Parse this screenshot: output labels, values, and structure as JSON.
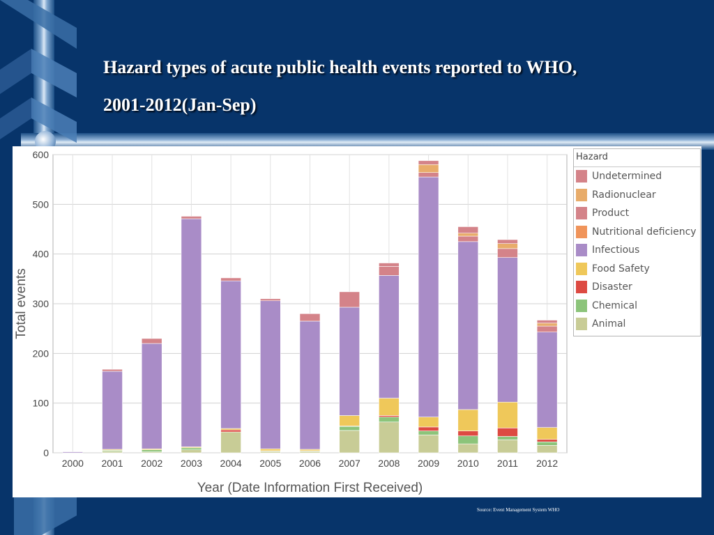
{
  "page": {
    "title_line1": "Hazard types of acute public health events reported to WHO,",
    "title_line2": "2001-2012(Jan-Sep)",
    "source": "Source: Event Management System WHO"
  },
  "chart_data": {
    "type": "bar",
    "stacked": true,
    "title": "",
    "xlabel": "Year (Date Information First Received)",
    "ylabel": "Total events",
    "ylim": [
      0,
      600
    ],
    "yticks": [
      0,
      100,
      200,
      300,
      400,
      500,
      600
    ],
    "grid": true,
    "legend_position": "right",
    "legend_title": "Hazard",
    "categories": [
      "2000",
      "2001",
      "2002",
      "2003",
      "2004",
      "2005",
      "2006",
      "2007",
      "2008",
      "2009",
      "2010",
      "2011",
      "2012"
    ],
    "series": [
      {
        "name": "Animal",
        "color": "#c8cc96",
        "values": [
          0,
          3,
          2,
          6,
          42,
          3,
          3,
          45,
          62,
          36,
          18,
          26,
          15
        ]
      },
      {
        "name": "Chemical",
        "color": "#8cc47a",
        "values": [
          0,
          2,
          4,
          4,
          0,
          1,
          1,
          8,
          10,
          8,
          16,
          7,
          7
        ]
      },
      {
        "name": "Disaster",
        "color": "#dd4a42",
        "values": [
          0,
          0,
          0,
          0,
          4,
          0,
          0,
          1,
          3,
          8,
          10,
          17,
          5
        ]
      },
      {
        "name": "Food Safety",
        "color": "#efc85a",
        "values": [
          0,
          2,
          2,
          2,
          3,
          4,
          3,
          21,
          35,
          20,
          43,
          52,
          24
        ]
      },
      {
        "name": "Infectious",
        "color": "#a98cc7",
        "values": [
          2,
          157,
          212,
          459,
          297,
          298,
          258,
          218,
          247,
          483,
          338,
          291,
          192
        ]
      },
      {
        "name": "Nutritional deficiency",
        "color": "#f0945a",
        "values": [
          0,
          0,
          0,
          0,
          0,
          0,
          0,
          0,
          0,
          0,
          0,
          0,
          0
        ]
      },
      {
        "name": "Product",
        "color": "#d48389",
        "values": [
          0,
          4,
          10,
          5,
          6,
          4,
          15,
          31,
          18,
          9,
          11,
          18,
          12
        ]
      },
      {
        "name": "Radionuclear",
        "color": "#e8ac6a",
        "values": [
          0,
          0,
          0,
          0,
          0,
          0,
          0,
          0,
          0,
          16,
          6,
          10,
          6
        ]
      },
      {
        "name": "Undetermined",
        "color": "#d48389",
        "values": [
          0,
          0,
          0,
          0,
          0,
          0,
          0,
          0,
          7,
          8,
          13,
          8,
          6
        ]
      }
    ],
    "legend_order": [
      "Undetermined",
      "Radionuclear",
      "Product",
      "Nutritional deficiency",
      "Infectious",
      "Food Safety",
      "Disaster",
      "Chemical",
      "Animal"
    ]
  }
}
